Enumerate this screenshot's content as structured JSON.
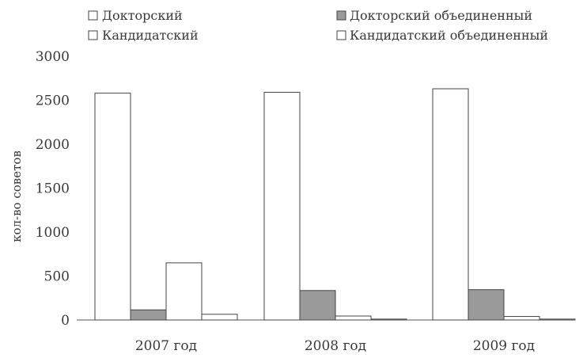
{
  "chart_data": {
    "type": "bar",
    "categories": [
      "2007 год",
      "2008 год",
      "2009 год"
    ],
    "series": [
      {
        "name": "Докторский",
        "values": [
          2580,
          2590,
          2630
        ],
        "color": "#ffffff"
      },
      {
        "name": "Докторский объединенный",
        "values": [
          115,
          335,
          345
        ],
        "color": "#9a9a9a"
      },
      {
        "name": "Кандидатский",
        "values": [
          650,
          45,
          40
        ],
        "color": "#ffffff"
      },
      {
        "name": "Кандидатский объединенный",
        "values": [
          65,
          10,
          10
        ],
        "color": "#ffffff"
      }
    ],
    "ylabel": "кол-во советов",
    "ylim": [
      0,
      3000
    ],
    "yticks": [
      0,
      500,
      1000,
      1500,
      2000,
      2500,
      3000
    ],
    "grid": false,
    "legend_position": "top"
  }
}
